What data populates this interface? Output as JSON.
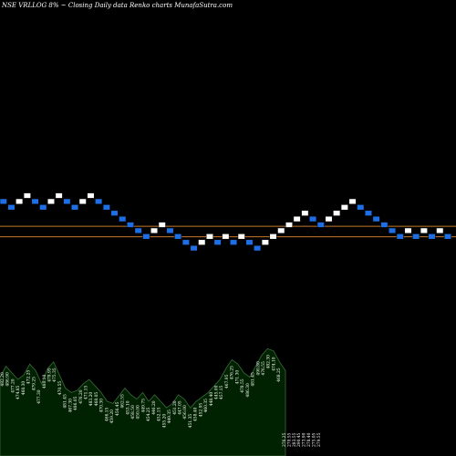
{
  "header": {
    "title": "NSE VRLLOG 8% ~  Closing Daily data  Renko  charts MunafaSutra.com"
  },
  "colors": {
    "background": "#000000",
    "up_brick": "#ffffff",
    "down_brick": "#1e6fe6",
    "brick_outline": "#000000",
    "level_line": "#c8782a",
    "volume_fill": "#002200",
    "volume_outline": "#3a6a3a"
  },
  "chart_data": {
    "type": "renko",
    "bricks": [
      {
        "dir": "down",
        "level": 0
      },
      {
        "dir": "down",
        "level": -1
      },
      {
        "dir": "up",
        "level": 0
      },
      {
        "dir": "up",
        "level": 1
      },
      {
        "dir": "down",
        "level": 0
      },
      {
        "dir": "down",
        "level": -1
      },
      {
        "dir": "up",
        "level": 0
      },
      {
        "dir": "up",
        "level": 1
      },
      {
        "dir": "down",
        "level": 0
      },
      {
        "dir": "down",
        "level": -1
      },
      {
        "dir": "up",
        "level": 0
      },
      {
        "dir": "up",
        "level": 1
      },
      {
        "dir": "down",
        "level": 0
      },
      {
        "dir": "down",
        "level": -1
      },
      {
        "dir": "down",
        "level": -2
      },
      {
        "dir": "down",
        "level": -3
      },
      {
        "dir": "down",
        "level": -4
      },
      {
        "dir": "down",
        "level": -5
      },
      {
        "dir": "down",
        "level": -6
      },
      {
        "dir": "up",
        "level": -5
      },
      {
        "dir": "up",
        "level": -4
      },
      {
        "dir": "down",
        "level": -5
      },
      {
        "dir": "down",
        "level": -6
      },
      {
        "dir": "down",
        "level": -7
      },
      {
        "dir": "down",
        "level": -8
      },
      {
        "dir": "up",
        "level": -7
      },
      {
        "dir": "up",
        "level": -6
      },
      {
        "dir": "down",
        "level": -7
      },
      {
        "dir": "up",
        "level": -6
      },
      {
        "dir": "down",
        "level": -7
      },
      {
        "dir": "up",
        "level": -6
      },
      {
        "dir": "down",
        "level": -7
      },
      {
        "dir": "down",
        "level": -8
      },
      {
        "dir": "up",
        "level": -7
      },
      {
        "dir": "up",
        "level": -6
      },
      {
        "dir": "up",
        "level": -5
      },
      {
        "dir": "up",
        "level": -4
      },
      {
        "dir": "up",
        "level": -3
      },
      {
        "dir": "up",
        "level": -2
      },
      {
        "dir": "down",
        "level": -3
      },
      {
        "dir": "down",
        "level": -4
      },
      {
        "dir": "up",
        "level": -3
      },
      {
        "dir": "up",
        "level": -2
      },
      {
        "dir": "up",
        "level": -1
      },
      {
        "dir": "up",
        "level": 0
      },
      {
        "dir": "down",
        "level": -1
      },
      {
        "dir": "down",
        "level": -2
      },
      {
        "dir": "down",
        "level": -3
      },
      {
        "dir": "down",
        "level": -4
      },
      {
        "dir": "down",
        "level": -5
      },
      {
        "dir": "down",
        "level": -6
      },
      {
        "dir": "up",
        "level": -5
      },
      {
        "dir": "down",
        "level": -6
      },
      {
        "dir": "up",
        "level": -5
      },
      {
        "dir": "down",
        "level": -6
      },
      {
        "dir": "up",
        "level": -5
      },
      {
        "dir": "down",
        "level": -6
      }
    ],
    "level_lines": [
      -4.7,
      -6.5
    ],
    "volume_profile": [
      0.72,
      0.82,
      0.76,
      0.7,
      0.74,
      0.84,
      0.78,
      0.66,
      0.8,
      0.86,
      0.74,
      0.62,
      0.58,
      0.6,
      0.66,
      0.7,
      0.64,
      0.58,
      0.5,
      0.48,
      0.55,
      0.62,
      0.56,
      0.52,
      0.58,
      0.5,
      0.56,
      0.5,
      0.44,
      0.48,
      0.56,
      0.52,
      0.44,
      0.5,
      0.54,
      0.58,
      0.64,
      0.7,
      0.8,
      0.88,
      0.84,
      0.76,
      0.72,
      0.82,
      0.92,
      0.98,
      0.96,
      0.86,
      0.78
    ],
    "price_labels": [
      "482.20",
      "486.90",
      "477.20",
      "474.85",
      "468.30",
      "472.25",
      "479.25",
      "477.30",
      "480.10",
      "478.95",
      "475.35",
      "470.55",
      "481.45",
      "467.30",
      "486.05",
      "476.20",
      "471.15",
      "483.20",
      "468.05",
      "470.30",
      "466.15",
      "459.20",
      "456.45",
      "462.55",
      "453.10",
      "458.50",
      "450.00",
      "449.75",
      "454.25",
      "446.20",
      "452.15",
      "455.20",
      "449.35",
      "451.20",
      "447.05",
      "456.00",
      "451.35",
      "458.40",
      "452.95",
      "460.35",
      "448.40",
      "445.00",
      "457.15",
      "467.95",
      "476.25",
      "471.30",
      "478.55",
      "486.30",
      "481.45",
      "490.80",
      "476.55",
      "482.30",
      "474.10",
      "468.25",
      "276.25",
      "270.55",
      "283.55",
      "290.45",
      "273.90",
      "278.40",
      "275.05",
      "279.55"
    ]
  }
}
